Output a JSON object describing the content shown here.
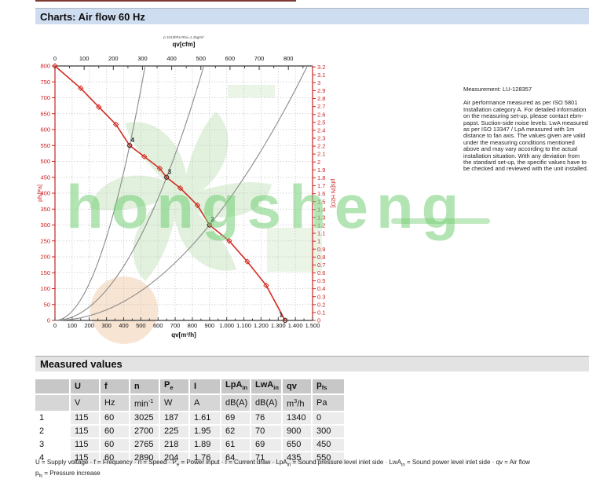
{
  "header": {
    "title": "Charts: Air flow 60 Hz"
  },
  "side_panel": {
    "measurement": "Measurement: LU-128357",
    "paragraph": "Air performance measured as per ISO 5801 Installation category A. For detailed information on the measuring set-up, please contact ebm-papst. Suction-side noise levels: LwA measured as per ISO 13347 / LpA measured with 1m distance to fan axis. The values given are valid under the measuring conditions mentioned above and may vary according to the actual installation situation. With any deviation from the standard set-up, the specific values have to be checked and reviewed with the unit installed."
  },
  "watermark": {
    "text": "hongsheng",
    "color": "#74ce74"
  },
  "chart_data": {
    "type": "line",
    "title": "Air flow 60 Hz",
    "condition_note": "p 1013hPa Rho=1.2kg/m³",
    "axes": {
      "top": {
        "label": "qv[cfm]",
        "min": 0,
        "max": 880,
        "major_tick": 100,
        "minor_tick": 50,
        "cfm_to_m3h": 1.699
      },
      "bottom": {
        "label": "qv[m³/h]",
        "min": 0,
        "max": 1500,
        "major_tick": 100,
        "tick_labels": [
          "0",
          "100",
          "200",
          "300",
          "400",
          "500",
          "600",
          "700",
          "800",
          "900",
          "1.000",
          "1.100",
          "1.200",
          "1.300",
          "1.400",
          "1.500"
        ]
      },
      "left": {
        "label": "pfs[Pa]",
        "min": 0,
        "max": 800,
        "tick": 50,
        "color": "#cc2222"
      },
      "right": {
        "label": "pfs[IN H2O]",
        "min": 0,
        "max": 3.2,
        "tick": 0.1,
        "pa_per_unit": 249.09,
        "color": "#cc2222"
      }
    },
    "grid": {
      "x_step": 100,
      "y_step": 50,
      "style": "dotted"
    },
    "series": [
      {
        "name": "fan-curve",
        "color": "#d22b1f",
        "points": [
          [
            0,
            800
          ],
          [
            150,
            730
          ],
          [
            255,
            671
          ],
          [
            355,
            616
          ],
          [
            435,
            550
          ],
          [
            520,
            515
          ],
          [
            610,
            478
          ],
          [
            650,
            450
          ],
          [
            730,
            416
          ],
          [
            830,
            362
          ],
          [
            900,
            300
          ],
          [
            1015,
            250
          ],
          [
            1120,
            185
          ],
          [
            1230,
            110
          ],
          [
            1340,
            0
          ]
        ]
      },
      {
        "name": "system-curves",
        "color": "#8a8a8a",
        "through_points": [
          [
            435,
            550
          ],
          [
            650,
            450
          ],
          [
            900,
            300
          ]
        ]
      }
    ],
    "operating_points": [
      {
        "label": "1",
        "qv": 1340,
        "pfs": 0
      },
      {
        "label": "2",
        "qv": 900,
        "pfs": 300
      },
      {
        "label": "3",
        "qv": 650,
        "pfs": 450
      },
      {
        "label": "4",
        "qv": 435,
        "pfs": 550
      }
    ]
  },
  "table": {
    "section_title": "Measured values",
    "columns": [
      "",
      "U",
      "f",
      "n",
      "P_{e}",
      "I",
      "LpA_{in}",
      "LwA_{in}",
      "qv",
      "p_{fs}"
    ],
    "units": [
      "",
      "V",
      "Hz",
      "min^{-1}",
      "W",
      "A",
      "dB(A)",
      "dB(A)",
      "m^{3}/h",
      "Pa"
    ],
    "rows": [
      [
        "1",
        "115",
        "60",
        "3025",
        "187",
        "1.61",
        "69",
        "76",
        "1340",
        "0"
      ],
      [
        "2",
        "115",
        "60",
        "2700",
        "225",
        "1.95",
        "62",
        "70",
        "900",
        "300"
      ],
      [
        "3",
        "115",
        "60",
        "2765",
        "218",
        "1.89",
        "61",
        "69",
        "650",
        "450"
      ],
      [
        "4",
        "115",
        "60",
        "2890",
        "204",
        "1.76",
        "64",
        "71",
        "435",
        "550"
      ]
    ],
    "footnotes": [
      "U = Supply voltage · f = Frequency · n = Speed · P_{e} = Power input · I = Current draw · LpA_{in} = Sound pressure level inlet side · LwA_{in} = Sound power level inlet side · qv = Air flow",
      "p_{fs} = Pressure increase"
    ]
  },
  "layout_colors": {
    "title_bar_bg": "#cfddf1",
    "section_bar_bg": "#e3e3e3",
    "table_header_bg": "#c7c7c7",
    "table_units_bg": "#d6d6d6",
    "table_row_bg": "#ececec",
    "axis_red": "#cc2222",
    "top_strip": "#7d3b32"
  }
}
